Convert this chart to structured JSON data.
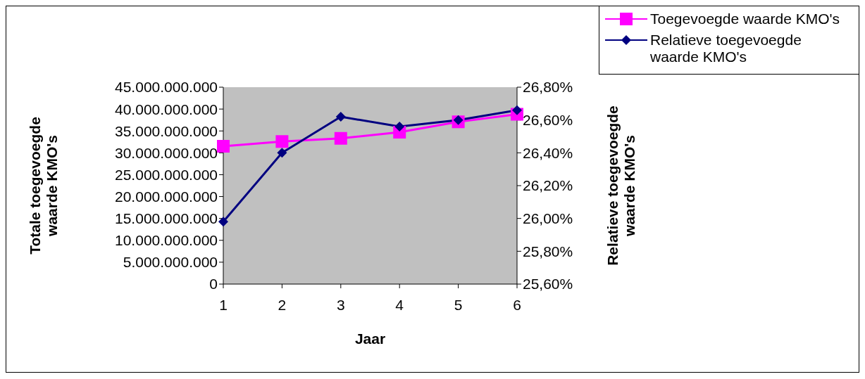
{
  "chart_data": {
    "type": "line",
    "xlabel": "Jaar",
    "ylabel": "Totale toegevoegde waarde KMO's",
    "y2label": "Relatieve toegevoegde waarde KMO's",
    "categories": [
      "1",
      "2",
      "3",
      "4",
      "5",
      "6"
    ],
    "series": [
      {
        "name": "Toegevoegde waarde KMO's",
        "color": "#ff00ff",
        "marker": "square",
        "values": [
          31500000000,
          32600000000,
          33300000000,
          34700000000,
          37100000000,
          38800000000
        ]
      },
      {
        "name": "Relatieve toegevoegde waarde KMO's",
        "color": "#000080",
        "marker": "diamond",
        "axis": "y2",
        "values": [
          25.98,
          26.4,
          26.62,
          26.56,
          26.6,
          26.66
        ]
      }
    ],
    "ylim": [
      0,
      45000000000
    ],
    "yticks": [
      0,
      {
        "value": 5000000000,
        "label": "5.000.000.000"
      },
      {
        "value": 10000000000,
        "label": "10.000.000.000"
      },
      {
        "value": 15000000000,
        "label": "15.000.000.000"
      },
      {
        "value": 20000000000,
        "label": "20.000.000.000"
      },
      {
        "value": 25000000000,
        "label": "25.000.000.000"
      },
      {
        "value": 30000000000,
        "label": "30.000.000.000"
      },
      {
        "value": 35000000000,
        "label": "35.000.000.000"
      },
      {
        "value": 40000000000,
        "label": "40.000.000.000"
      },
      {
        "value": 45000000000,
        "label": "45.000.000.000"
      }
    ],
    "y2lim": [
      25.6,
      26.8
    ],
    "y2ticks": [
      {
        "value": 25.6,
        "label": "25,60%"
      },
      {
        "value": 25.8,
        "label": "25,80%"
      },
      {
        "value": 26.0,
        "label": "26,00%"
      },
      {
        "value": 26.2,
        "label": "26,20%"
      },
      {
        "value": 26.4,
        "label": "26,40%"
      },
      {
        "value": 26.6,
        "label": "26,60%"
      },
      {
        "value": 26.8,
        "label": "26,80%"
      }
    ],
    "grid": false,
    "legend": "top right",
    "line_style": "solid"
  }
}
